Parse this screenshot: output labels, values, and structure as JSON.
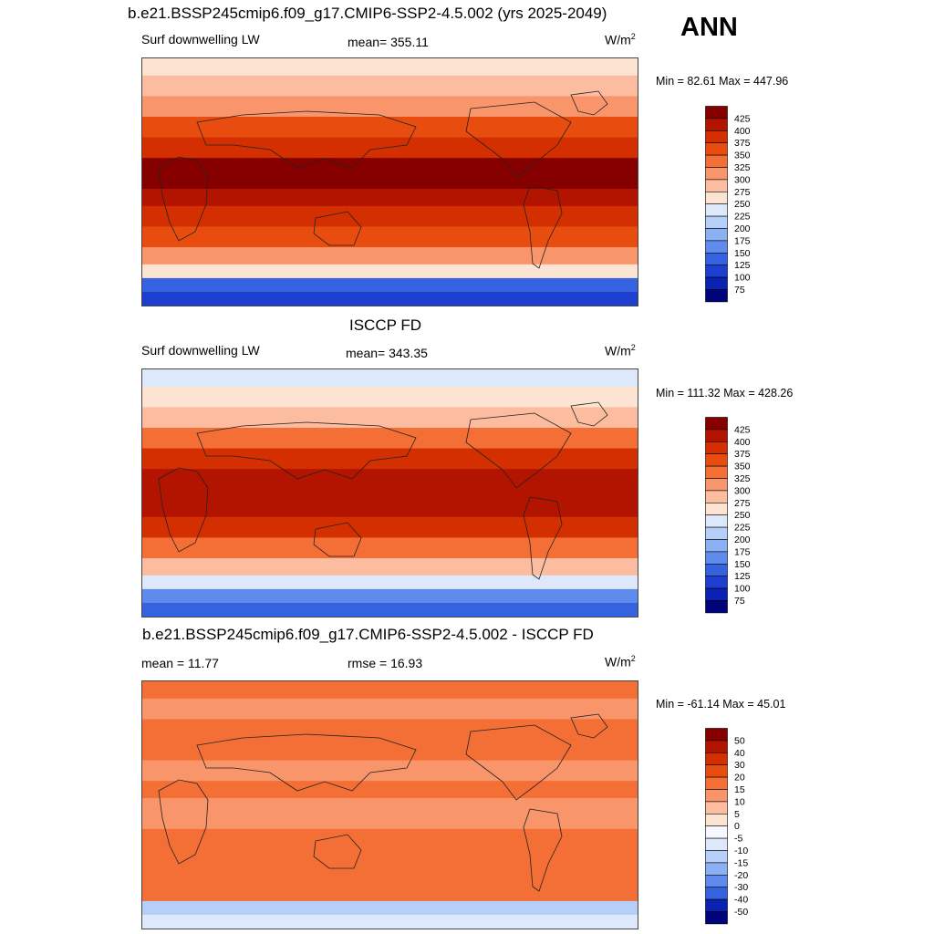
{
  "page": {
    "title": "b.e21.BSSP245cmip6.f09_g17.CMIP6-SSP2-4.5.002 (yrs 2025-2049)",
    "season": "ANN"
  },
  "panels": [
    {
      "variable": "Surf downwelling LW",
      "stat": "mean= 355.11",
      "units": "W/m",
      "units_exp": "2",
      "minmax": "Min =  82.61 Max = 447.96",
      "colorbar": {
        "labels": [
          "425",
          "400",
          "375",
          "350",
          "325",
          "300",
          "275",
          "250",
          "225",
          "200",
          "175",
          "150",
          "125",
          "100",
          "75"
        ],
        "colors": [
          "#870000",
          "#b31400",
          "#d32f00",
          "#e84d0f",
          "#f36f35",
          "#f9956a",
          "#fcbca0",
          "#fde4d2",
          "#dde9fb",
          "#b6cff8",
          "#8bb0f3",
          "#5f8cec",
          "#3563e0",
          "#1c3fd0",
          "#0a22b4",
          "#00047a"
        ]
      }
    },
    {
      "header": "ISCCP FD",
      "variable": "Surf downwelling LW",
      "stat": "mean= 343.35",
      "units": "W/m",
      "units_exp": "2",
      "minmax": "Min = 111.32 Max = 428.26",
      "colorbar": {
        "labels": [
          "425",
          "400",
          "375",
          "350",
          "325",
          "300",
          "275",
          "250",
          "225",
          "200",
          "175",
          "150",
          "125",
          "100",
          "75"
        ],
        "colors": [
          "#870000",
          "#b31400",
          "#d32f00",
          "#e84d0f",
          "#f36f35",
          "#f9956a",
          "#fcbca0",
          "#fde4d2",
          "#dde9fb",
          "#b6cff8",
          "#8bb0f3",
          "#5f8cec",
          "#3563e0",
          "#1c3fd0",
          "#0a22b4",
          "#00047a"
        ]
      }
    },
    {
      "header": "b.e21.BSSP245cmip6.f09_g17.CMIP6-SSP2-4.5.002 - ISCCP FD",
      "stat": "mean =  11.77",
      "stat2": "rmse =  16.93",
      "units": "W/m",
      "units_exp": "2",
      "minmax": "Min = -61.14 Max =  45.01",
      "colorbar": {
        "labels": [
          "50",
          "40",
          "30",
          "20",
          "15",
          "10",
          "5",
          "0",
          "-5",
          "-10",
          "-15",
          "-20",
          "-30",
          "-40",
          "-50"
        ],
        "colors": [
          "#870000",
          "#b31400",
          "#d32f00",
          "#e84d0f",
          "#f36f35",
          "#f9956a",
          "#fcbca0",
          "#fde4d2",
          "#f7f7ff",
          "#dde9fb",
          "#b6cff8",
          "#8bb0f3",
          "#5f8cec",
          "#3563e0",
          "#0a22b4",
          "#00047a"
        ]
      }
    }
  ],
  "chart_data": [
    {
      "type": "heatmap",
      "title": "b.e21.BSSP245cmip6.f09_g17.CMIP6-SSP2-4.5.002 (yrs 2025-2049)",
      "variable": "Surf downwelling LW",
      "units": "W/m2",
      "mean": 355.11,
      "min": 82.61,
      "max": 447.96,
      "zonal_profile": [
        {
          "lat": 85,
          "value": 250
        },
        {
          "lat": 70,
          "value": 275
        },
        {
          "lat": 55,
          "value": 300
        },
        {
          "lat": 40,
          "value": 350
        },
        {
          "lat": 25,
          "value": 390
        },
        {
          "lat": 10,
          "value": 425
        },
        {
          "lat": 0,
          "value": 430
        },
        {
          "lat": -10,
          "value": 420
        },
        {
          "lat": -25,
          "value": 390
        },
        {
          "lat": -40,
          "value": 350
        },
        {
          "lat": -55,
          "value": 300
        },
        {
          "lat": -65,
          "value": 250
        },
        {
          "lat": -75,
          "value": 140
        },
        {
          "lat": -85,
          "value": 110
        }
      ],
      "levels": [
        75,
        100,
        125,
        150,
        175,
        200,
        225,
        250,
        275,
        300,
        325,
        350,
        375,
        400,
        425
      ]
    },
    {
      "type": "heatmap",
      "title": "ISCCP FD",
      "variable": "Surf downwelling LW",
      "units": "W/m2",
      "mean": 343.35,
      "min": 111.32,
      "max": 428.26,
      "zonal_profile": [
        {
          "lat": 85,
          "value": 240
        },
        {
          "lat": 70,
          "value": 260
        },
        {
          "lat": 55,
          "value": 290
        },
        {
          "lat": 40,
          "value": 340
        },
        {
          "lat": 25,
          "value": 380
        },
        {
          "lat": 10,
          "value": 415
        },
        {
          "lat": 0,
          "value": 420
        },
        {
          "lat": -10,
          "value": 410
        },
        {
          "lat": -25,
          "value": 375
        },
        {
          "lat": -40,
          "value": 335
        },
        {
          "lat": -55,
          "value": 290
        },
        {
          "lat": -65,
          "value": 240
        },
        {
          "lat": -75,
          "value": 150
        },
        {
          "lat": -85,
          "value": 125
        }
      ],
      "levels": [
        75,
        100,
        125,
        150,
        175,
        200,
        225,
        250,
        275,
        300,
        325,
        350,
        375,
        400,
        425
      ]
    },
    {
      "type": "heatmap",
      "title": "b.e21.BSSP245cmip6.f09_g17.CMIP6-SSP2-4.5.002 - ISCCP FD",
      "units": "W/m2",
      "mean": 11.77,
      "rmse": 16.93,
      "min": -61.14,
      "max": 45.01,
      "zonal_profile": [
        {
          "lat": 85,
          "value": 15
        },
        {
          "lat": 70,
          "value": 10
        },
        {
          "lat": 55,
          "value": 15
        },
        {
          "lat": 40,
          "value": 15
        },
        {
          "lat": 25,
          "value": 10
        },
        {
          "lat": 10,
          "value": 15
        },
        {
          "lat": 0,
          "value": 10
        },
        {
          "lat": -10,
          "value": 10
        },
        {
          "lat": -25,
          "value": 15
        },
        {
          "lat": -40,
          "value": 15
        },
        {
          "lat": -55,
          "value": 15
        },
        {
          "lat": -65,
          "value": 15
        },
        {
          "lat": -75,
          "value": -15
        },
        {
          "lat": -85,
          "value": -10
        }
      ],
      "levels": [
        -50,
        -40,
        -30,
        -20,
        -15,
        -10,
        -5,
        0,
        5,
        10,
        15,
        20,
        30,
        40,
        50
      ]
    }
  ]
}
